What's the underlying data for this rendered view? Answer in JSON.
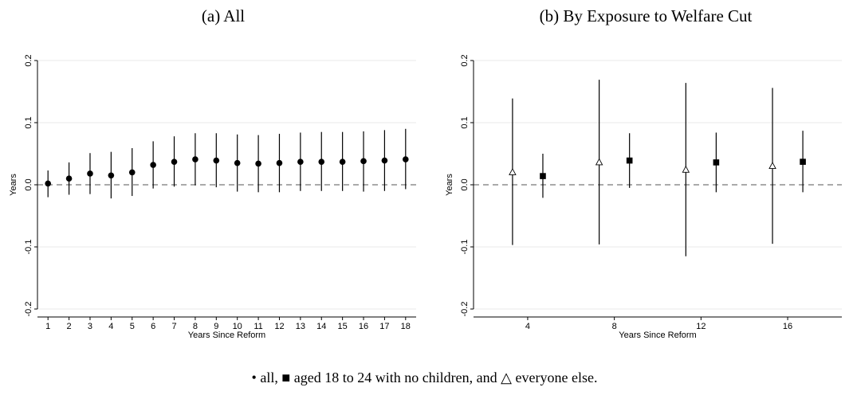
{
  "caption": "• all, ■ aged 18 to 24 with no children, and △ everyone else.",
  "chart_data": [
    {
      "type": "scatter",
      "title": "(a) All",
      "xlabel": "Years Since Reform",
      "ylabel": "Years",
      "xlim": [
        0.5,
        18.5
      ],
      "ylim": [
        -0.2,
        0.2
      ],
      "xticks": [
        1,
        2,
        3,
        4,
        5,
        6,
        7,
        8,
        9,
        10,
        11,
        12,
        13,
        14,
        15,
        16,
        17,
        18
      ],
      "yticks": [
        -0.2,
        -0.1,
        0.0,
        0.1,
        0.2
      ],
      "ytick_labels": [
        "-0.2",
        "-0.1",
        "0.0",
        "0.1",
        "0.2"
      ],
      "reference_line": 0,
      "series": [
        {
          "marker": "circle",
          "x": [
            1,
            2,
            3,
            4,
            5,
            6,
            7,
            8,
            9,
            10,
            11,
            12,
            13,
            14,
            15,
            16,
            17,
            18
          ],
          "y": [
            0.002,
            0.01,
            0.018,
            0.015,
            0.02,
            0.032,
            0.037,
            0.041,
            0.039,
            0.035,
            0.034,
            0.035,
            0.037,
            0.037,
            0.037,
            0.038,
            0.039,
            0.041
          ],
          "ci_low": [
            -0.02,
            -0.016,
            -0.015,
            -0.022,
            -0.018,
            -0.006,
            -0.003,
            -0.001,
            -0.004,
            -0.011,
            -0.012,
            -0.012,
            -0.01,
            -0.01,
            -0.01,
            -0.011,
            -0.01,
            -0.007
          ],
          "ci_high": [
            0.023,
            0.036,
            0.051,
            0.053,
            0.059,
            0.07,
            0.078,
            0.083,
            0.083,
            0.081,
            0.08,
            0.082,
            0.084,
            0.085,
            0.085,
            0.086,
            0.088,
            0.09
          ]
        }
      ]
    },
    {
      "type": "scatter",
      "title": "(b) By Exposure to Welfare Cut",
      "xlabel": "Years Since Reform",
      "ylabel": "Years",
      "xlim": [
        1.5,
        18.5
      ],
      "ylim": [
        -0.2,
        0.2
      ],
      "xticks": [
        4,
        8,
        12,
        16
      ],
      "yticks": [
        -0.2,
        -0.1,
        0.0,
        0.1,
        0.2
      ],
      "ytick_labels": [
        "-0.2",
        "-0.1",
        "0.0",
        "0.1",
        "0.2"
      ],
      "reference_line": 0,
      "series": [
        {
          "marker": "triangle",
          "x": [
            3.3,
            7.3,
            11.3,
            15.3
          ],
          "y": [
            0.02,
            0.036,
            0.024,
            0.03
          ],
          "ci_low": [
            -0.097,
            -0.096,
            -0.115,
            -0.095
          ],
          "ci_high": [
            0.139,
            0.169,
            0.164,
            0.156
          ]
        },
        {
          "marker": "square",
          "x": [
            4.7,
            8.7,
            12.7,
            16.7
          ],
          "y": [
            0.014,
            0.039,
            0.036,
            0.037
          ],
          "ci_low": [
            -0.021,
            -0.005,
            -0.012,
            -0.012
          ],
          "ci_high": [
            0.05,
            0.083,
            0.084,
            0.087
          ]
        }
      ]
    }
  ]
}
